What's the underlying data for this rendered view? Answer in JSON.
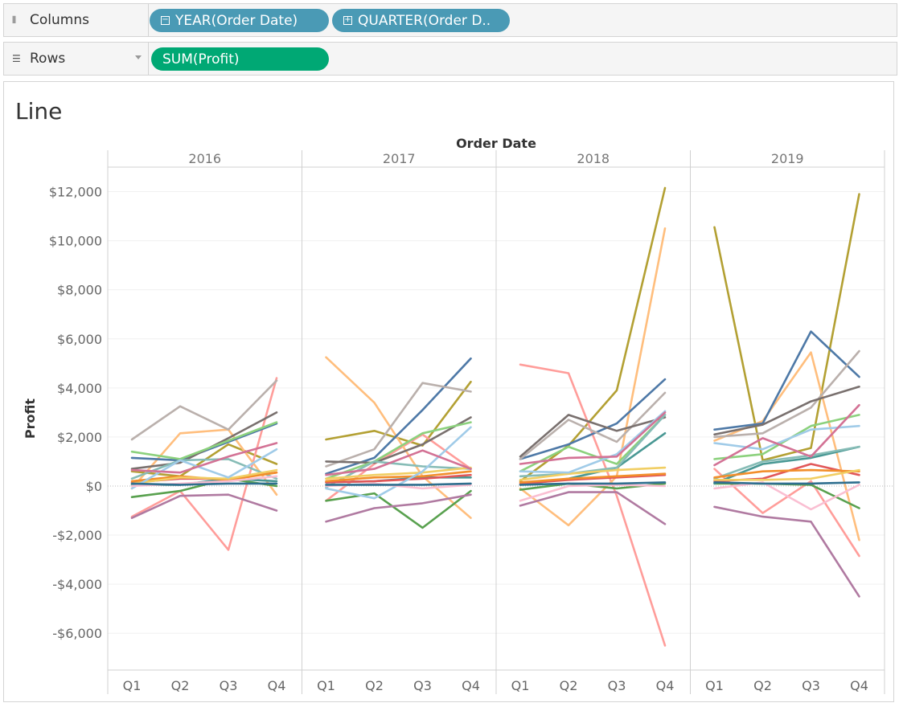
{
  "shelves": {
    "columns": {
      "label": "Columns",
      "pills": [
        "YEAR(Order Date)",
        "QUARTER(Order D.."
      ]
    },
    "rows": {
      "label": "Rows",
      "pills": [
        "SUM(Profit)"
      ]
    }
  },
  "sheet": {
    "title": "Line"
  },
  "chart_data": {
    "type": "line",
    "xlabel": "Order Date",
    "ylabel": "Profit",
    "panels": [
      "2016",
      "2017",
      "2018",
      "2019"
    ],
    "quarters": [
      "Q1",
      "Q2",
      "Q3",
      "Q4"
    ],
    "ylim": [
      -7500,
      13000
    ],
    "yticks": [
      12000,
      10000,
      8000,
      6000,
      4000,
      2000,
      0,
      -2000,
      -4000,
      -6000
    ],
    "ytick_labels": [
      "$12,000",
      "$10,000",
      "$8,000",
      "$6,000",
      "$4,000",
      "$2,000",
      "$0",
      "-$2,000",
      "-$4,000",
      "-$6,000"
    ],
    "series": [
      {
        "color": "#b3a033",
        "values": [
          [
            600,
            400,
            1700,
            900
          ],
          [
            1900,
            2250,
            1650,
            4250
          ],
          [
            200,
            1650,
            3900,
            12150
          ],
          [
            10550,
            1050,
            1550,
            11900
          ]
        ]
      },
      {
        "color": "#ff9d9a",
        "values": [
          [
            -1250,
            -200,
            -2600,
            4400
          ],
          [
            -600,
            900,
            2100,
            700
          ],
          [
            4950,
            4600,
            -400,
            -6500
          ],
          [
            700,
            -1100,
            200,
            -2850
          ]
        ]
      },
      {
        "color": "#ffbe7d",
        "values": [
          [
            -100,
            2150,
            2300,
            -350
          ],
          [
            5250,
            3400,
            400,
            -1300
          ],
          [
            -100,
            -1600,
            400,
            10500
          ],
          [
            1850,
            2650,
            5450,
            -2200
          ]
        ]
      },
      {
        "color": "#4e79a7",
        "values": [
          [
            1150,
            1050,
            1800,
            2550
          ],
          [
            500,
            1150,
            3100,
            5200
          ],
          [
            1100,
            1700,
            2550,
            4350
          ],
          [
            2300,
            2550,
            6300,
            4450
          ]
        ]
      },
      {
        "color": "#bab0ac",
        "values": [
          [
            1900,
            3250,
            2300,
            4300
          ],
          [
            800,
            1500,
            4200,
            3850
          ],
          [
            1100,
            2700,
            1800,
            3800
          ],
          [
            2000,
            2150,
            3200,
            5500
          ]
        ]
      },
      {
        "color": "#79706e",
        "values": [
          [
            700,
            950,
            1950,
            3000
          ],
          [
            1000,
            950,
            1700,
            2800
          ],
          [
            1200,
            2900,
            2250,
            2800
          ],
          [
            2100,
            2500,
            3450,
            4050
          ]
        ]
      },
      {
        "color": "#59a14f",
        "values": [
          [
            -450,
            -200,
            300,
            0
          ],
          [
            -600,
            -300,
            -1700,
            -200
          ],
          [
            -150,
            100,
            -100,
            100
          ],
          [
            100,
            100,
            50,
            -900
          ]
        ]
      },
      {
        "color": "#8cd17d",
        "values": [
          [
            1400,
            1100,
            1850,
            2600
          ],
          [
            300,
            1000,
            2150,
            2600
          ],
          [
            600,
            1600,
            900,
            2900
          ],
          [
            1100,
            1300,
            2450,
            2900
          ]
        ]
      },
      {
        "color": "#499894",
        "values": [
          [
            50,
            50,
            300,
            200
          ],
          [
            150,
            200,
            350,
            350
          ],
          [
            50,
            300,
            750,
            2150
          ],
          [
            100,
            900,
            1150,
            1600
          ]
        ]
      },
      {
        "color": "#86bcb6",
        "values": [
          [
            300,
            1050,
            1100,
            300
          ],
          [
            -50,
            1000,
            800,
            700
          ],
          [
            400,
            500,
            750,
            2900
          ],
          [
            300,
            1000,
            1250,
            1600
          ]
        ]
      },
      {
        "color": "#e15759",
        "values": [
          [
            150,
            300,
            300,
            550
          ],
          [
            150,
            200,
            300,
            450
          ],
          [
            100,
            250,
            350,
            450
          ],
          [
            200,
            300,
            900,
            450
          ]
        ]
      },
      {
        "color": "#f28e2b",
        "values": [
          [
            200,
            400,
            250,
            550
          ],
          [
            200,
            350,
            400,
            600
          ],
          [
            150,
            300,
            400,
            500
          ],
          [
            350,
            600,
            650,
            600
          ]
        ]
      },
      {
        "color": "#f1ce63",
        "values": [
          [
            100,
            350,
            300,
            650
          ],
          [
            300,
            450,
            550,
            750
          ],
          [
            250,
            500,
            650,
            750
          ],
          [
            250,
            250,
            300,
            650
          ]
        ]
      },
      {
        "color": "#a0cbe8",
        "values": [
          [
            -100,
            1050,
            350,
            1500
          ],
          [
            -100,
            -500,
            600,
            2400
          ],
          [
            600,
            550,
            1300,
            3050
          ],
          [
            1750,
            1500,
            2300,
            2450
          ]
        ]
      },
      {
        "color": "#d37295",
        "values": [
          [
            650,
            550,
            1200,
            1750
          ],
          [
            450,
            700,
            1450,
            700
          ],
          [
            900,
            1150,
            1200,
            3000
          ],
          [
            850,
            1950,
            1200,
            3300
          ]
        ]
      },
      {
        "color": "#fabfd2",
        "values": [
          [
            0,
            100,
            200,
            400
          ],
          [
            0,
            100,
            -100,
            50
          ],
          [
            -600,
            0,
            50,
            0
          ],
          [
            -100,
            150,
            -950,
            50
          ]
        ]
      },
      {
        "color": "#b07aa1",
        "values": [
          [
            -1300,
            -400,
            -350,
            -1000
          ],
          [
            -1450,
            -900,
            -700,
            -350
          ],
          [
            -800,
            -250,
            -250,
            -1550
          ],
          [
            -850,
            -1250,
            -1450,
            -4500
          ]
        ]
      },
      {
        "color": "#2f6f8f",
        "values": [
          [
            100,
            50,
            100,
            100
          ],
          [
            50,
            50,
            50,
            100
          ],
          [
            50,
            100,
            100,
            150
          ],
          [
            150,
            100,
            100,
            150
          ]
        ]
      }
    ]
  }
}
